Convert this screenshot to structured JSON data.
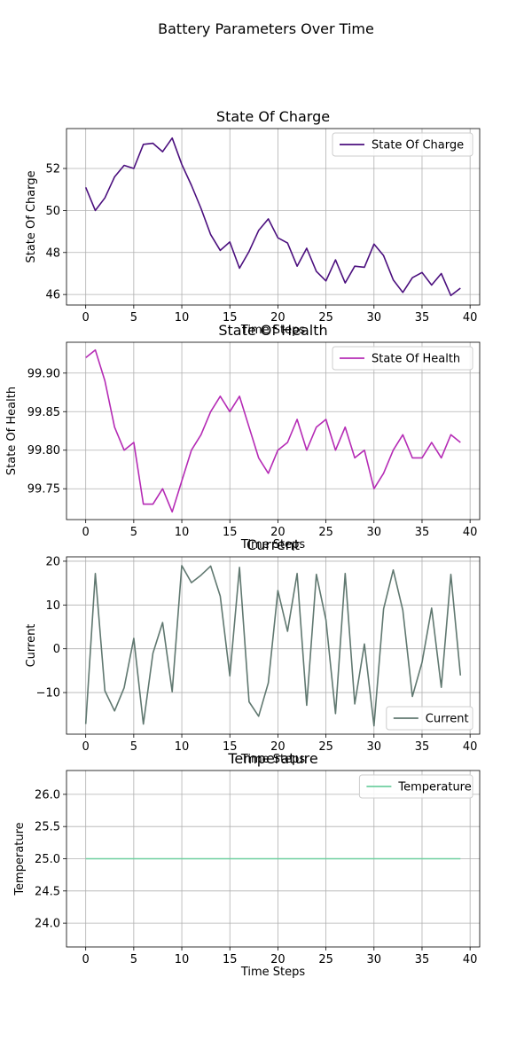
{
  "figure": {
    "title": "Battery Parameters Over Time"
  },
  "chart_data": [
    {
      "type": "line",
      "title": "State Of Charge",
      "xlabel": "Time Steps",
      "ylabel": "State Of Charge",
      "xlim": [
        -2,
        41
      ],
      "ylim": [
        45.5,
        53.9
      ],
      "xticks": [
        0,
        5,
        10,
        15,
        20,
        25,
        30,
        35,
        40
      ],
      "yticks": [
        46,
        48,
        50,
        52
      ],
      "ytick_labels": [
        "46",
        "48",
        "50",
        "52"
      ],
      "grid": true,
      "legend": "upper right",
      "series": [
        {
          "name": "State Of Charge",
          "color": "#4b0f7e",
          "x": [
            0,
            1,
            2,
            3,
            4,
            5,
            6,
            7,
            8,
            9,
            10,
            11,
            12,
            13,
            14,
            15,
            16,
            17,
            18,
            19,
            20,
            21,
            22,
            23,
            24,
            25,
            26,
            27,
            28,
            29,
            30,
            31,
            32,
            33,
            34,
            35,
            36,
            37,
            38,
            39
          ],
          "y": [
            51.1,
            50.0,
            50.6,
            51.6,
            52.15,
            52.0,
            53.15,
            53.2,
            52.8,
            53.45,
            52.2,
            51.2,
            50.1,
            48.85,
            48.1,
            48.5,
            47.25,
            48.05,
            49.05,
            49.6,
            48.7,
            48.45,
            47.35,
            48.2,
            47.1,
            46.65,
            47.65,
            46.55,
            47.35,
            47.3,
            48.4,
            47.85,
            46.7,
            46.1,
            46.8,
            47.05,
            46.45,
            47.0,
            45.95,
            46.3
          ]
        }
      ]
    },
    {
      "type": "line",
      "title": "State Of Health",
      "xlabel": "Time Steps",
      "ylabel": "State Of Health",
      "xlim": [
        -2,
        41
      ],
      "ylim": [
        99.71,
        99.94
      ],
      "xticks": [
        0,
        5,
        10,
        15,
        20,
        25,
        30,
        35,
        40
      ],
      "yticks": [
        99.75,
        99.8,
        99.85,
        99.9
      ],
      "ytick_labels": [
        "99.75",
        "99.80",
        "99.85",
        "99.90"
      ],
      "grid": true,
      "legend": "upper right",
      "series": [
        {
          "name": "State Of Health",
          "color": "#b52bb5",
          "x": [
            0,
            1,
            2,
            3,
            4,
            5,
            6,
            7,
            8,
            9,
            10,
            11,
            12,
            13,
            14,
            15,
            16,
            17,
            18,
            19,
            20,
            21,
            22,
            23,
            24,
            25,
            26,
            27,
            28,
            29,
            30,
            31,
            32,
            33,
            34,
            35,
            36,
            37,
            38,
            39
          ],
          "y": [
            99.92,
            99.93,
            99.89,
            99.83,
            99.8,
            99.81,
            99.73,
            99.73,
            99.75,
            99.72,
            99.76,
            99.8,
            99.82,
            99.85,
            99.87,
            99.85,
            99.87,
            99.83,
            99.79,
            99.77,
            99.8,
            99.81,
            99.84,
            99.8,
            99.83,
            99.84,
            99.8,
            99.83,
            99.79,
            99.8,
            99.75,
            99.77,
            99.8,
            99.82,
            99.79,
            99.79,
            99.81,
            99.79,
            99.82,
            99.81
          ]
        }
      ]
    },
    {
      "type": "line",
      "title": "Current",
      "xlabel": "Time Steps",
      "ylabel": "Current",
      "xlim": [
        -2,
        41
      ],
      "ylim": [
        -19.5,
        21.0
      ],
      "xticks": [
        0,
        5,
        10,
        15,
        20,
        25,
        30,
        35,
        40
      ],
      "yticks": [
        -10,
        0,
        10,
        20
      ],
      "ytick_labels": [
        "−10",
        "0",
        "10",
        "20"
      ],
      "grid": true,
      "legend": "lower right",
      "series": [
        {
          "name": "Current",
          "color": "#607870",
          "x": [
            0,
            1,
            2,
            3,
            4,
            5,
            6,
            7,
            8,
            9,
            10,
            11,
            12,
            13,
            14,
            15,
            16,
            17,
            18,
            19,
            20,
            21,
            22,
            23,
            24,
            25,
            26,
            27,
            28,
            29,
            30,
            31,
            32,
            33,
            34,
            35,
            36,
            37,
            38,
            39
          ],
          "y": [
            -17.2,
            17.2,
            -9.6,
            -14.2,
            -8.9,
            2.4,
            -17.2,
            -1.0,
            6.0,
            -9.8,
            19.0,
            15.1,
            16.8,
            18.9,
            12.0,
            -6.2,
            18.6,
            -12.1,
            -15.4,
            -7.8,
            13.3,
            4.0,
            17.2,
            -12.9,
            17.0,
            6.6,
            -14.8,
            17.2,
            -12.6,
            1.1,
            -17.6,
            9.1,
            18.0,
            8.8,
            -10.9,
            -3.1,
            9.3,
            -8.8,
            17.0,
            -6.1
          ]
        }
      ]
    },
    {
      "type": "line",
      "title": "Temperature",
      "xlabel": "Time Steps",
      "ylabel": "Temperature",
      "xlim": [
        -2,
        41
      ],
      "ylim": [
        23.63,
        26.37
      ],
      "xticks": [
        0,
        5,
        10,
        15,
        20,
        25,
        30,
        35,
        40
      ],
      "yticks": [
        24.0,
        24.5,
        25.0,
        25.5,
        26.0
      ],
      "ytick_labels": [
        "24.0",
        "24.5",
        "25.0",
        "25.5",
        "26.0"
      ],
      "grid": true,
      "legend": "upper right",
      "series": [
        {
          "name": "Temperature",
          "color": "#6fcfa0",
          "x": [
            0,
            1,
            2,
            3,
            4,
            5,
            6,
            7,
            8,
            9,
            10,
            11,
            12,
            13,
            14,
            15,
            16,
            17,
            18,
            19,
            20,
            21,
            22,
            23,
            24,
            25,
            26,
            27,
            28,
            29,
            30,
            31,
            32,
            33,
            34,
            35,
            36,
            37,
            38,
            39
          ],
          "y": [
            25,
            25,
            25,
            25,
            25,
            25,
            25,
            25,
            25,
            25,
            25,
            25,
            25,
            25,
            25,
            25,
            25,
            25,
            25,
            25,
            25,
            25,
            25,
            25,
            25,
            25,
            25,
            25,
            25,
            25,
            25,
            25,
            25,
            25,
            25,
            25,
            25,
            25,
            25,
            25
          ]
        }
      ]
    }
  ]
}
